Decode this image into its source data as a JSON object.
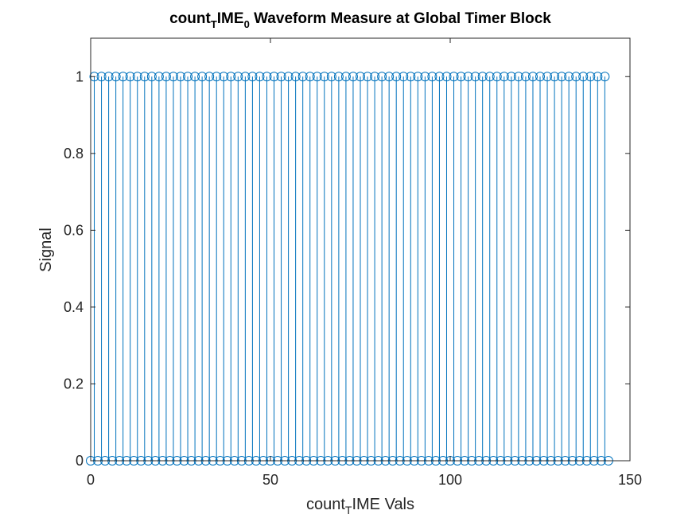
{
  "chart_data": {
    "type": "stem",
    "title": {
      "base": "count",
      "sub1": "T",
      "mid": "IME",
      "sub2": "0",
      "rest": " Waveform Measure at Global Timer Block"
    },
    "xlabel": {
      "base": "count",
      "sub": "T",
      "rest": "IME Vals"
    },
    "ylabel": "Signal",
    "xlim": [
      0,
      150
    ],
    "ylim": [
      0,
      1.1
    ],
    "xticks": [
      "0",
      "50",
      "100",
      "150"
    ],
    "yticks": [
      "0",
      "0.2",
      "0.4",
      "0.6",
      "0.8",
      "1"
    ],
    "marker": "circle",
    "color": "#0072BD",
    "pattern": "alternating 1, 0 from x=1 to x=144",
    "x_start": 1,
    "x_end": 144,
    "y_odd_x": 1,
    "y_even_x": 0,
    "extra_points": [
      {
        "x": 0,
        "y": 0
      }
    ]
  }
}
